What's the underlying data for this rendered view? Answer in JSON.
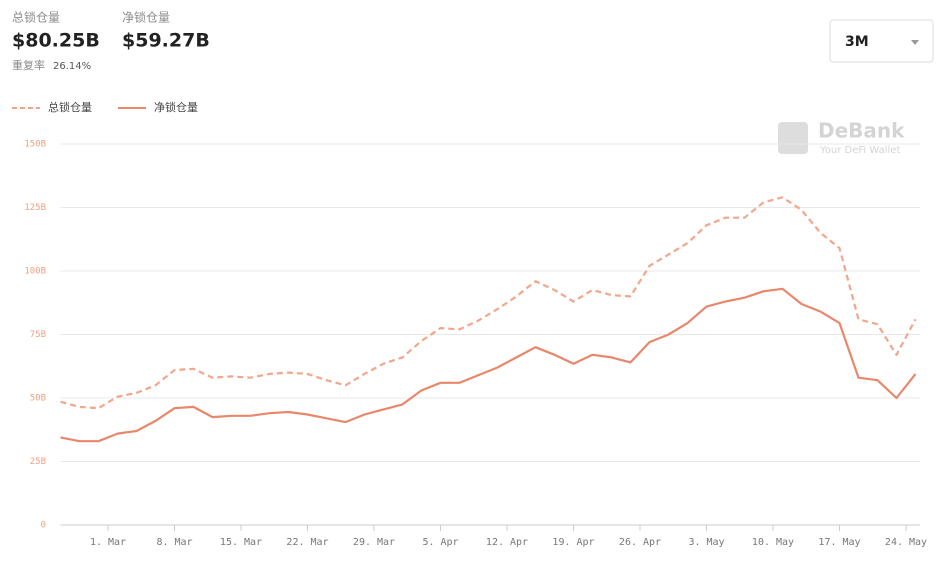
{
  "header": {
    "total_label": "总锁仓量",
    "total_value": "$80.25B",
    "net_label": "净锁仓量",
    "net_value": "$59.27B",
    "dup_label": "重复率",
    "dup_value": "26.14%"
  },
  "range_selector": "3M",
  "watermark": {
    "brand": "DeBank",
    "tagline": "Your DeFi Wallet"
  },
  "chart_data": {
    "type": "line",
    "x": [
      "02-24",
      "02-26",
      "02-28",
      "03-02",
      "03-04",
      "03-06",
      "03-08",
      "03-10",
      "03-12",
      "03-14",
      "03-16",
      "03-18",
      "03-20",
      "03-22",
      "03-24",
      "03-26",
      "03-28",
      "03-30",
      "04-01",
      "04-03",
      "04-05",
      "04-07",
      "04-09",
      "04-11",
      "04-13",
      "04-15",
      "04-17",
      "04-19",
      "04-21",
      "04-23",
      "04-25",
      "04-27",
      "04-29",
      "05-01",
      "05-03",
      "05-05",
      "05-07",
      "05-09",
      "05-11",
      "05-13",
      "05-15",
      "05-17",
      "05-19",
      "05-21",
      "05-23",
      "05-25"
    ],
    "series": [
      {
        "name": "总锁仓量",
        "color": "#f2a68c",
        "dashed": true,
        "values": [
          48.5,
          46.5,
          46,
          50.5,
          52,
          55,
          61,
          61.5,
          58,
          58.5,
          58,
          59.5,
          60,
          59.5,
          57,
          55,
          59.5,
          63.5,
          66,
          72.5,
          77.5,
          77,
          80.5,
          85,
          90,
          96,
          92.5,
          88,
          92.5,
          90.5,
          90,
          102,
          106.5,
          111,
          118,
          121,
          121,
          127,
          129,
          124,
          115,
          109,
          81,
          79,
          67,
          81
        ]
      },
      {
        "name": "净锁仓量",
        "color": "#e9876b",
        "dashed": false,
        "values": [
          34.5,
          33,
          33,
          36,
          37,
          41,
          46,
          46.5,
          42.5,
          43,
          43,
          44,
          44.5,
          43.5,
          42,
          40.5,
          43.5,
          45.5,
          47.5,
          53,
          56,
          56,
          59,
          62,
          66,
          70,
          67,
          63.5,
          67,
          66,
          64,
          72,
          75,
          79.5,
          86,
          88,
          89.5,
          92,
          93,
          87,
          84,
          79.5,
          58,
          57,
          50,
          59.5
        ]
      }
    ],
    "xlim": [
      "02-24",
      "05-26"
    ],
    "xticks": [
      {
        "value": "03-01",
        "label": "1. Mar"
      },
      {
        "value": "03-08",
        "label": "8. Mar"
      },
      {
        "value": "03-15",
        "label": "15. Mar"
      },
      {
        "value": "03-22",
        "label": "22. Mar"
      },
      {
        "value": "03-29",
        "label": "29. Mar"
      },
      {
        "value": "04-05",
        "label": "5. Apr"
      },
      {
        "value": "04-12",
        "label": "12. Apr"
      },
      {
        "value": "04-19",
        "label": "19. Apr"
      },
      {
        "value": "04-26",
        "label": "26. Apr"
      },
      {
        "value": "05-03",
        "label": "3. May"
      },
      {
        "value": "05-10",
        "label": "10. May"
      },
      {
        "value": "05-17",
        "label": "17. May"
      },
      {
        "value": "05-24",
        "label": "24. May"
      }
    ],
    "ylim": [
      0,
      150
    ],
    "yticks": [
      0,
      {
        "value": 25,
        "label": "25B"
      },
      {
        "value": 50,
        "label": "50B"
      },
      {
        "value": 75,
        "label": "75B"
      },
      {
        "value": 100,
        "label": "100B"
      },
      {
        "value": 125,
        "label": "125B"
      },
      {
        "value": 150,
        "label": "150B"
      }
    ],
    "grid": true
  }
}
